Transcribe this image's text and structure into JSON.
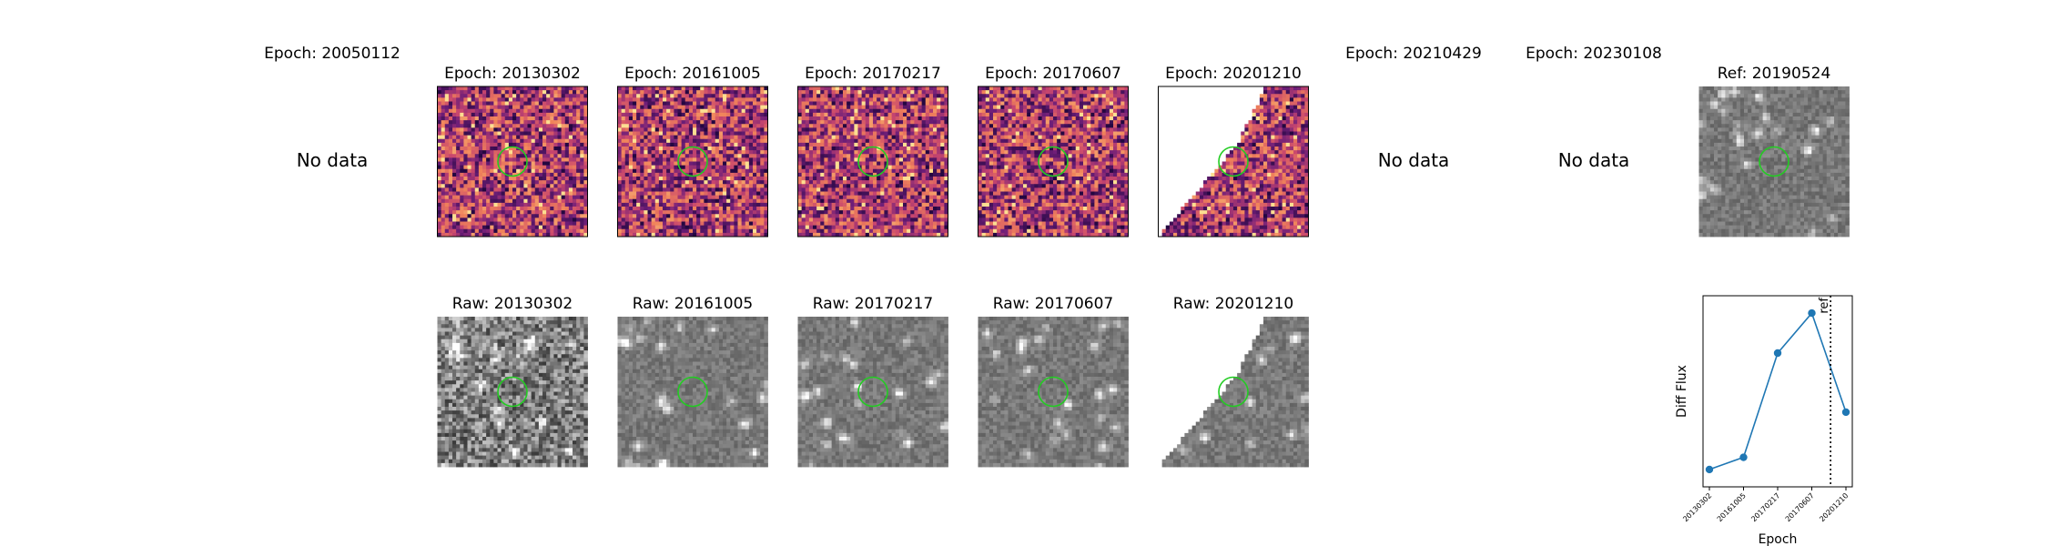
{
  "no_data_label": "No data",
  "panels": [
    {
      "title": "Epoch: 20050112",
      "kind": "empty"
    },
    {
      "title": "Epoch: 20130302",
      "kind": "diff",
      "seed": 11
    },
    {
      "title": "Epoch: 20161005",
      "kind": "diff",
      "seed": 23
    },
    {
      "title": "Epoch: 20170217",
      "kind": "diff",
      "seed": 37
    },
    {
      "title": "Epoch: 20170607",
      "kind": "diff",
      "seed": 41
    },
    {
      "title": "Epoch: 20201210",
      "kind": "diff",
      "seed": 53,
      "edge_mask": true
    },
    {
      "title": "Epoch: 20210429",
      "kind": "empty"
    },
    {
      "title": "Epoch: 20230108",
      "kind": "empty"
    },
    {
      "title": "Ref: 20190524",
      "kind": "raw",
      "seed": 67
    }
  ],
  "raw_panels": [
    {
      "title": "Raw: 20130302",
      "seed": 101,
      "noisy": true
    },
    {
      "title": "Raw: 20161005",
      "seed": 113
    },
    {
      "title": "Raw: 20170217",
      "seed": 127
    },
    {
      "title": "Raw: 20170607",
      "seed": 131
    },
    {
      "title": "Raw: 20201210",
      "seed": 149,
      "edge_mask": true
    }
  ],
  "colors": {
    "circle": "#22cc22",
    "line": "#1f77b4",
    "marker": "#1f77b4"
  },
  "chart_data": {
    "type": "line",
    "x": [
      "20130302",
      "20161005",
      "20170217",
      "20170607",
      "20201210"
    ],
    "values": [
      0.05,
      0.12,
      0.72,
      0.95,
      0.38
    ],
    "ylim": [
      -0.05,
      1.05
    ],
    "xlabel": "Epoch",
    "ylabel": "Diff Flux",
    "ref_label": "ref",
    "ref_position": 3.55,
    "y_ticks_shown": false
  }
}
